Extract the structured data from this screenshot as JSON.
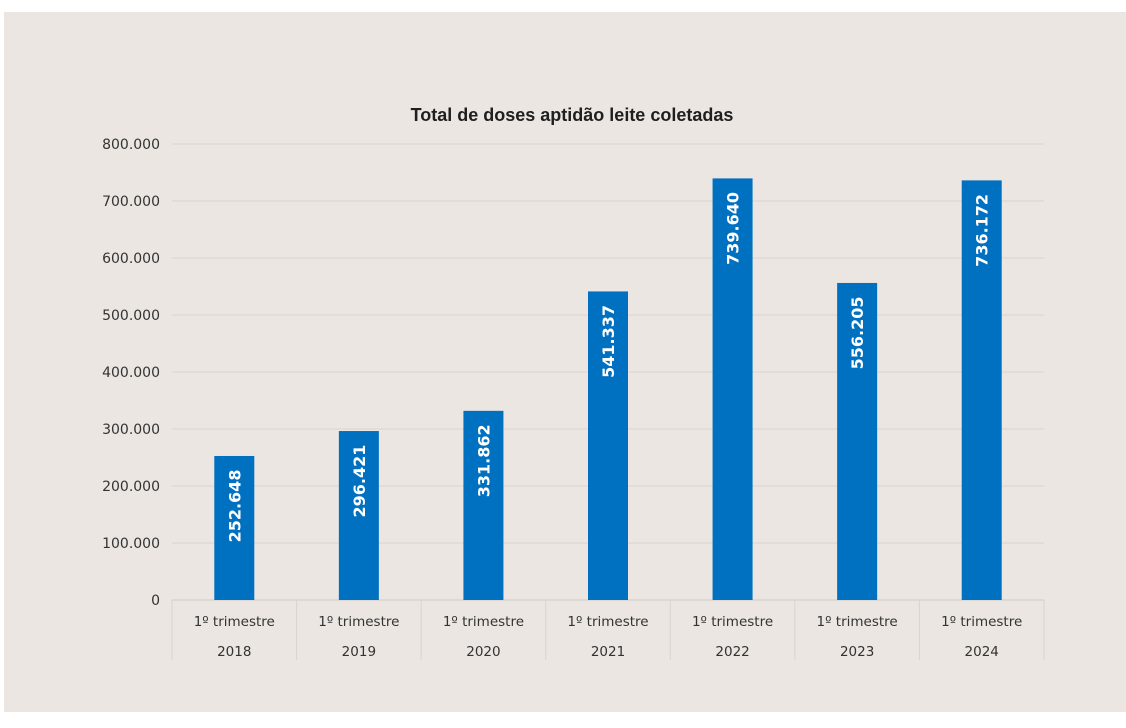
{
  "chart_data": {
    "type": "bar",
    "title": "Total de doses aptidão leite coletadas",
    "xlabel": "",
    "ylabel": "",
    "category_line1": [
      "1º trimestre",
      "1º trimestre",
      "1º trimestre",
      "1º trimestre",
      "1º trimestre",
      "1º trimestre",
      "1º trimestre"
    ],
    "category_line2": [
      "2018",
      "2019",
      "2020",
      "2021",
      "2022",
      "2023",
      "2024"
    ],
    "values": [
      252648,
      296421,
      331862,
      541337,
      739640,
      556205,
      736172
    ],
    "data_labels": [
      "252.648",
      "296.421",
      "331.862",
      "541.337",
      "739.640",
      "556.205",
      "736.172"
    ],
    "yticks": [
      0,
      100000,
      200000,
      300000,
      400000,
      500000,
      600000,
      700000,
      800000
    ],
    "ytick_labels": [
      "0",
      "100.000",
      "200.000",
      "300.000",
      "400.000",
      "500.000",
      "600.000",
      "700.000",
      "800.000"
    ],
    "ylim": [
      0,
      800000
    ],
    "grid": true,
    "legend": "none",
    "colors": {
      "bar": "#0070c0",
      "background": "#ebe6e1",
      "grid": "#d9d4cf"
    }
  }
}
